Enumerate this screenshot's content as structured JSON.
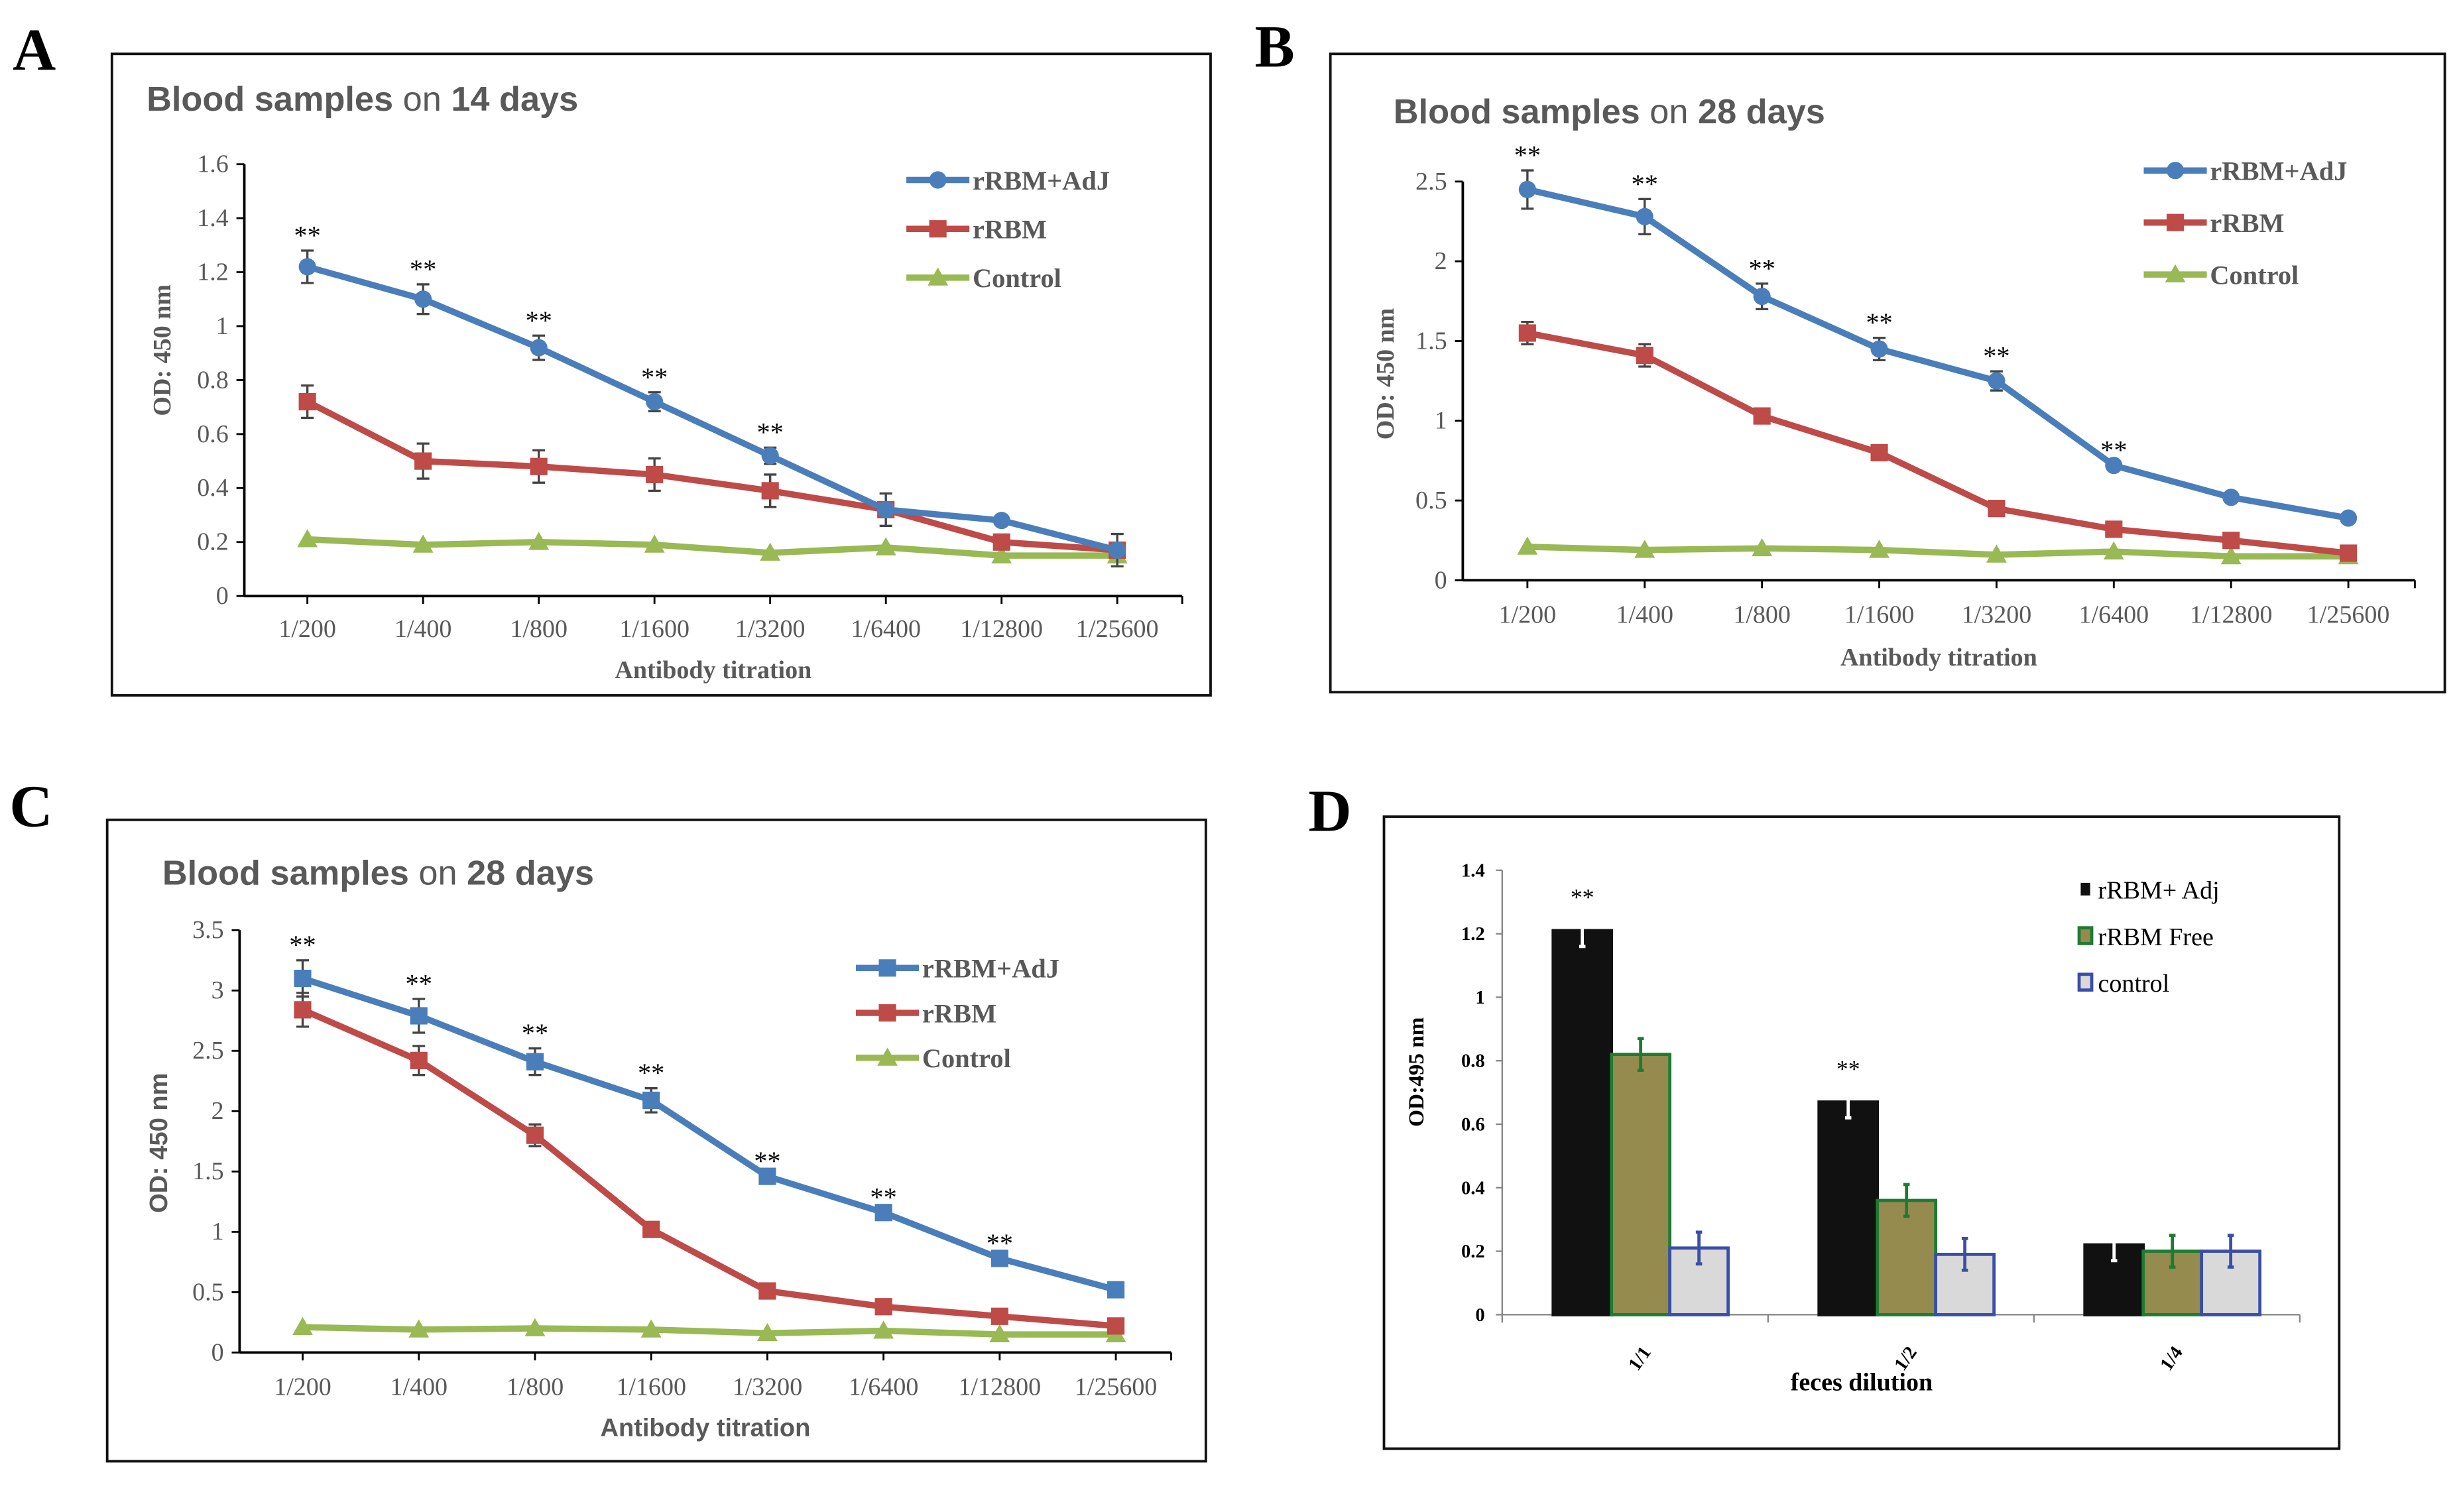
{
  "colors": {
    "adj": "#4a7ebb",
    "rrbm": "#be4b48",
    "control": "#98b954",
    "bar_adj": "#111111",
    "bar_free": "#958b4f",
    "bar_free_edge": "#1e7b32",
    "bar_ctrl": "#d9d9d9",
    "bar_ctrl_edge": "#3a4ea8",
    "title": "#595959",
    "axis_text": "#595959"
  },
  "chart_data": [
    {
      "panel_label": "A",
      "type": "line",
      "title_parts": [
        "Blood samples",
        " on ",
        "14 days"
      ],
      "xlabel": "Antibody titration",
      "ylabel": "OD: 450 nm",
      "categories": [
        "1/200",
        "1/400",
        "1/800",
        "1/1600",
        "1/3200",
        "1/6400",
        "1/12800",
        "1/25600"
      ],
      "ylim": [
        0,
        1.6
      ],
      "yticks": [
        "0",
        "0.2",
        "0.4",
        "0.6",
        "0.8",
        "1",
        "1.2",
        "1.4",
        "1.6"
      ],
      "ytick_values": [
        0,
        0.2,
        0.4,
        0.6,
        0.8,
        1,
        1.2,
        1.4,
        1.6
      ],
      "legend_position": "top-right",
      "grid": false,
      "series": [
        {
          "name": "rRBM+AdJ",
          "marker": "circle",
          "values": [
            1.22,
            1.1,
            0.92,
            0.72,
            0.52,
            0.32,
            0.28,
            0.17
          ],
          "errors": [
            0.06,
            0.055,
            0.045,
            0.035,
            0.03,
            0,
            0,
            0
          ]
        },
        {
          "name": "rRBM",
          "marker": "square",
          "values": [
            0.72,
            0.5,
            0.48,
            0.45,
            0.39,
            0.32,
            0.2,
            0.17
          ],
          "errors": [
            0.06,
            0.065,
            0.06,
            0.06,
            0.06,
            0.06,
            0,
            0.06
          ]
        },
        {
          "name": "Control",
          "marker": "triangle",
          "values": [
            0.21,
            0.19,
            0.2,
            0.19,
            0.16,
            0.18,
            0.15,
            0.15
          ],
          "errors": [
            0,
            0,
            0,
            0,
            0,
            0,
            0,
            0
          ]
        }
      ],
      "significance": {
        "label": "**",
        "series": "rRBM+AdJ",
        "indices": [
          0,
          1,
          2,
          3,
          4
        ]
      }
    },
    {
      "panel_label": "B",
      "type": "line",
      "title_parts": [
        "Blood samples",
        " on ",
        "28 days"
      ],
      "xlabel": "Antibody titration",
      "ylabel": "OD: 450 nm",
      "categories": [
        "1/200",
        "1/400",
        "1/800",
        "1/1600",
        "1/3200",
        "1/6400",
        "1/12800",
        "1/25600"
      ],
      "ylim": [
        0,
        2.5
      ],
      "yticks": [
        "0",
        "0.5",
        "1",
        "1.5",
        "2",
        "2.5"
      ],
      "ytick_values": [
        0,
        0.5,
        1,
        1.5,
        2,
        2.5
      ],
      "legend_position": "top-right",
      "grid": false,
      "series": [
        {
          "name": "rRBM+AdJ",
          "marker": "circle",
          "values": [
            2.45,
            2.28,
            1.78,
            1.45,
            1.25,
            0.72,
            0.52,
            0.39
          ],
          "errors": [
            0.12,
            0.11,
            0.08,
            0.07,
            0.06,
            0,
            0,
            0
          ]
        },
        {
          "name": "rRBM",
          "marker": "square",
          "values": [
            1.55,
            1.41,
            1.03,
            0.8,
            0.45,
            0.32,
            0.25,
            0.17
          ],
          "errors": [
            0.07,
            0.07,
            0,
            0,
            0,
            0,
            0,
            0
          ]
        },
        {
          "name": "Control",
          "marker": "triangle",
          "values": [
            0.21,
            0.19,
            0.2,
            0.19,
            0.16,
            0.18,
            0.15,
            0.15
          ],
          "errors": [
            0,
            0,
            0,
            0,
            0,
            0,
            0,
            0
          ]
        }
      ],
      "significance": {
        "label": "**",
        "series": "rRBM+AdJ",
        "indices": [
          0,
          1,
          2,
          3,
          4,
          5
        ]
      }
    },
    {
      "panel_label": "C",
      "type": "line",
      "title_parts": [
        "Blood samples",
        " on ",
        "28 days"
      ],
      "xlabel": "Antibody titration",
      "ylabel": "OD: 450 nm",
      "categories": [
        "1/200",
        "1/400",
        "1/800",
        "1/1600",
        "1/3200",
        "1/6400",
        "1/12800",
        "1/25600"
      ],
      "ylim": [
        0,
        3.5
      ],
      "yticks": [
        "0",
        "0.5",
        "1",
        "1.5",
        "2",
        "2.5",
        "3",
        "3.5"
      ],
      "ytick_values": [
        0,
        0.5,
        1,
        1.5,
        2,
        2.5,
        3,
        3.5
      ],
      "legend_position": "top-right",
      "grid": false,
      "series": [
        {
          "name": "rRBM+AdJ",
          "marker": "square",
          "values": [
            3.1,
            2.79,
            2.41,
            2.09,
            1.46,
            1.16,
            0.78,
            0.52
          ],
          "errors": [
            0.15,
            0.14,
            0.11,
            0.1,
            0,
            0,
            0,
            0
          ]
        },
        {
          "name": "rRBM",
          "marker": "square",
          "values": [
            2.84,
            2.42,
            1.8,
            1.02,
            0.51,
            0.38,
            0.3,
            0.22
          ],
          "errors": [
            0.14,
            0.12,
            0.09,
            0,
            0,
            0,
            0,
            0
          ]
        },
        {
          "name": "Control",
          "marker": "triangle",
          "values": [
            0.21,
            0.19,
            0.2,
            0.19,
            0.16,
            0.18,
            0.15,
            0.15
          ],
          "errors": [
            0,
            0,
            0,
            0,
            0,
            0,
            0,
            0
          ]
        }
      ],
      "significance": {
        "label": "**",
        "series": "rRBM+AdJ",
        "indices": [
          0,
          1,
          2,
          3,
          4,
          5,
          6
        ]
      }
    },
    {
      "panel_label": "D",
      "type": "bar",
      "xlabel": "feces dilution",
      "ylabel": "OD:495 nm",
      "categories": [
        "1/1",
        "1/2",
        "1/4"
      ],
      "ylim": [
        0,
        1.4
      ],
      "yticks": [
        "0",
        "0.2",
        "0.4",
        "0.6",
        "0.8",
        "1",
        "1.2",
        "1.4"
      ],
      "ytick_values": [
        0,
        0.2,
        0.4,
        0.6,
        0.8,
        1,
        1.2,
        1.4
      ],
      "legend_position": "top-right",
      "grid": false,
      "series": [
        {
          "name": "rRBM+ Adj",
          "values": [
            1.21,
            0.67,
            0.22
          ],
          "errors": [
            0.05,
            0.05,
            0.05
          ]
        },
        {
          "name": "rRBM Free",
          "values": [
            0.82,
            0.36,
            0.2
          ],
          "errors": [
            0.05,
            0.05,
            0.05
          ]
        },
        {
          "name": "control",
          "values": [
            0.21,
            0.19,
            0.2
          ],
          "errors": [
            0.05,
            0.05,
            0.05
          ]
        }
      ],
      "significance": {
        "label": "**",
        "series": "rRBM+ Adj",
        "indices": [
          0,
          1
        ]
      }
    }
  ]
}
